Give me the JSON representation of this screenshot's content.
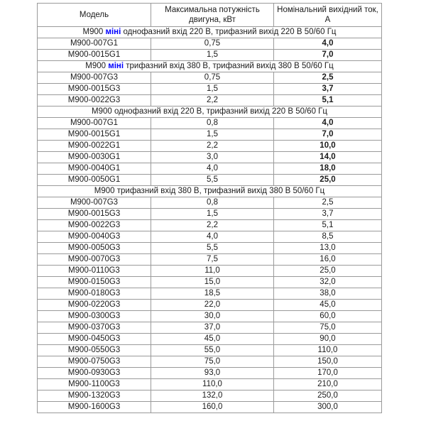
{
  "colors": {
    "accent": "#0000ff",
    "border": "#9a9a9a",
    "frame": "#7f7f7f",
    "text": "#1b1b1b"
  },
  "table": {
    "header": {
      "model": "Модель",
      "power": "Максимальна потужність двигуна, кВт",
      "current": "Номінальний вихідний ток, А"
    },
    "sections": [
      {
        "title_parts": [
          {
            "text": "М900 ",
            "accent": false
          },
          {
            "text": "міні",
            "accent": true
          },
          {
            "text": " однофазний вхід 220 В, трифазний вихід 220 В 50/60 Гц",
            "accent": false
          }
        ],
        "bold_current": true,
        "rows": [
          {
            "model": "M900-007G1",
            "power": "0,75",
            "current": "4,0"
          },
          {
            "model": "M900-0015G1",
            "power": "1,5",
            "current": "7,0"
          }
        ]
      },
      {
        "title_parts": [
          {
            "text": "М900 ",
            "accent": false
          },
          {
            "text": "міні",
            "accent": true
          },
          {
            "text": " трифазний вхід 380 В, трифазний вихід 380 В 50/60 Гц",
            "accent": false
          }
        ],
        "bold_current": true,
        "rows": [
          {
            "model": "M900-007G3",
            "power": "0,75",
            "current": "2,5"
          },
          {
            "model": "M900-0015G3",
            "power": "1,5",
            "current": "3,7"
          },
          {
            "model": "M900-0022G3",
            "power": "2,2",
            "current": "5,1"
          }
        ]
      },
      {
        "title_parts": [
          {
            "text": "М900 однофазний вхід 220 В, трифазний вихід 220 В 50/60 Гц",
            "accent": false
          }
        ],
        "bold_current": true,
        "rows": [
          {
            "model": "M900-007G1",
            "power": "0,8",
            "current": "4,0"
          },
          {
            "model": "M900-0015G1",
            "power": "1,5",
            "current": "7,0"
          },
          {
            "model": "M900-0022G1",
            "power": "2,2",
            "current": "10,0"
          },
          {
            "model": "M900-0030G1",
            "power": "3,0",
            "current": "14,0"
          },
          {
            "model": "M900-0040G1",
            "power": "4,0",
            "current": "18,0"
          },
          {
            "model": "M900-0050G1",
            "power": "5,5",
            "current": "25,0"
          }
        ]
      },
      {
        "title_parts": [
          {
            "text": "М900 трифазний вхід 380 В, трифазний вихід 380 В 50/60 Гц",
            "accent": false
          }
        ],
        "bold_current": false,
        "rows": [
          {
            "model": "M900-007G3",
            "power": "0,8",
            "current": "2,5"
          },
          {
            "model": "M900-0015G3",
            "power": "1,5",
            "current": "3,7"
          },
          {
            "model": "M900-0022G3",
            "power": "2,2",
            "current": "5,1"
          },
          {
            "model": "M900-0040G3",
            "power": "4,0",
            "current": "8,5"
          },
          {
            "model": "M900-0050G3",
            "power": "5,5",
            "current": "13,0"
          },
          {
            "model": "M900-0070G3",
            "power": "7,5",
            "current": "16,0"
          },
          {
            "model": "M900-0110G3",
            "power": "11,0",
            "current": "25,0"
          },
          {
            "model": "M900-0150G3",
            "power": "15,0",
            "current": "32,0"
          },
          {
            "model": "M900-0180G3",
            "power": "18,5",
            "current": "38,0"
          },
          {
            "model": "M900-0220G3",
            "power": "22,0",
            "current": "45,0"
          },
          {
            "model": "M900-0300G3",
            "power": "30,0",
            "current": "60,0"
          },
          {
            "model": "M900-0370G3",
            "power": "37,0",
            "current": "75,0"
          },
          {
            "model": "M900-0450G3",
            "power": "45,0",
            "current": "90,0"
          },
          {
            "model": "M900-0550G3",
            "power": "55,0",
            "current": "110,0"
          },
          {
            "model": "M900-0750G3",
            "power": "75,0",
            "current": "150,0"
          },
          {
            "model": "M900-0930G3",
            "power": "93,0",
            "current": "170,0"
          },
          {
            "model": "M900-1100G3",
            "power": "110,0",
            "current": "210,0"
          },
          {
            "model": "M900-1320G3",
            "power": "132,0",
            "current": "250,0"
          },
          {
            "model": "M900-1600G3",
            "power": "160,0",
            "current": "300,0"
          }
        ]
      }
    ]
  }
}
